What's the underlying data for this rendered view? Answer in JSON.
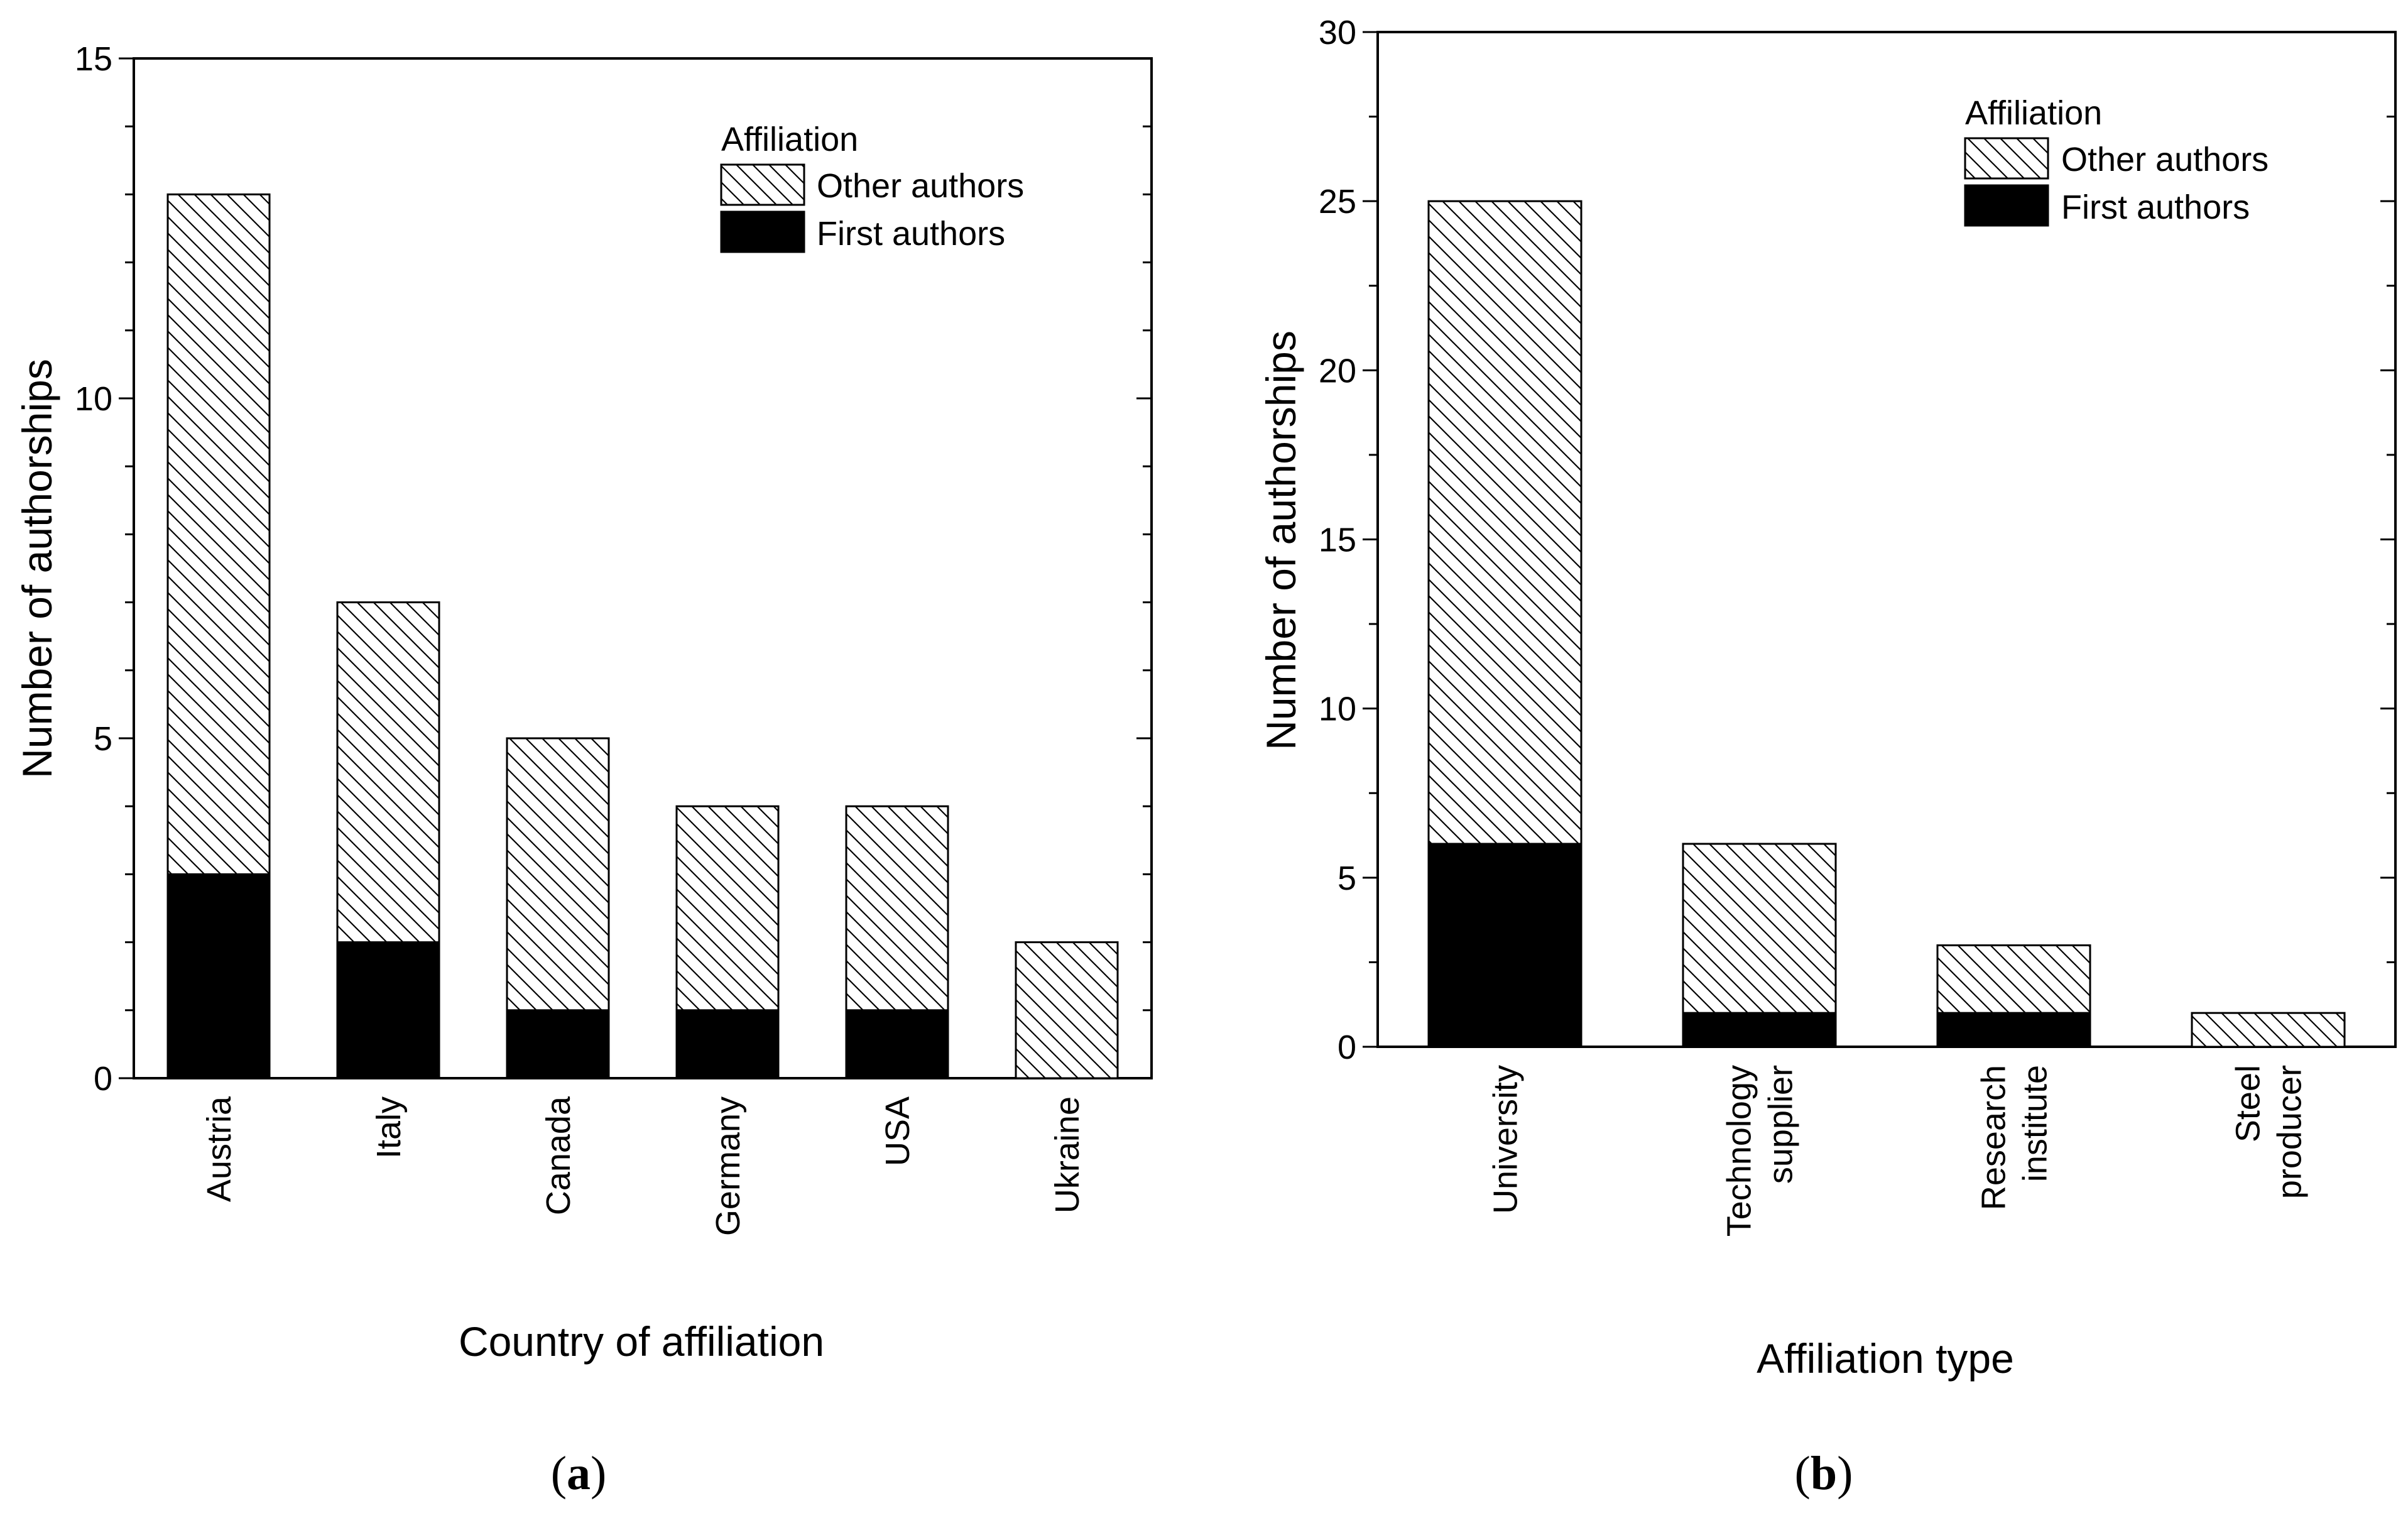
{
  "chart_data": [
    {
      "id": "a",
      "type": "bar",
      "stacked": true,
      "panel_label": "a",
      "title": "",
      "xlabel": "Country of affiliation",
      "ylabel": "Number of authorships",
      "categories": [
        [
          "Austria"
        ],
        [
          "Italy"
        ],
        [
          "Canada"
        ],
        [
          "Germany"
        ],
        [
          "USA"
        ],
        [
          "Ukraine"
        ]
      ],
      "series": [
        {
          "name": "First authors",
          "pattern": "solid",
          "values": [
            3,
            2,
            1,
            1,
            1,
            0
          ]
        },
        {
          "name": "Other authors",
          "pattern": "hatched",
          "values": [
            10,
            5,
            4,
            3,
            3,
            2
          ]
        }
      ],
      "ylim": [
        0,
        15
      ],
      "yticks": [
        0,
        5,
        10,
        15
      ],
      "legend": {
        "title": "Affiliation",
        "position": "top-right"
      }
    },
    {
      "id": "b",
      "type": "bar",
      "stacked": true,
      "panel_label": "b",
      "title": "",
      "xlabel": "Affiliation type",
      "ylabel": "Number of authorships",
      "categories": [
        [
          "University"
        ],
        [
          "Technology",
          "supplier"
        ],
        [
          "Research",
          "institute"
        ],
        [
          "Steel",
          "producer"
        ]
      ],
      "series": [
        {
          "name": "First authors",
          "pattern": "solid",
          "values": [
            6,
            1,
            1,
            0
          ]
        },
        {
          "name": "Other authors",
          "pattern": "hatched",
          "values": [
            19,
            5,
            2,
            1
          ]
        }
      ],
      "ylim": [
        0,
        30
      ],
      "yticks": [
        0,
        5,
        10,
        15,
        20,
        25,
        30
      ],
      "legend": {
        "title": "Affiliation",
        "position": "top-right"
      }
    }
  ]
}
